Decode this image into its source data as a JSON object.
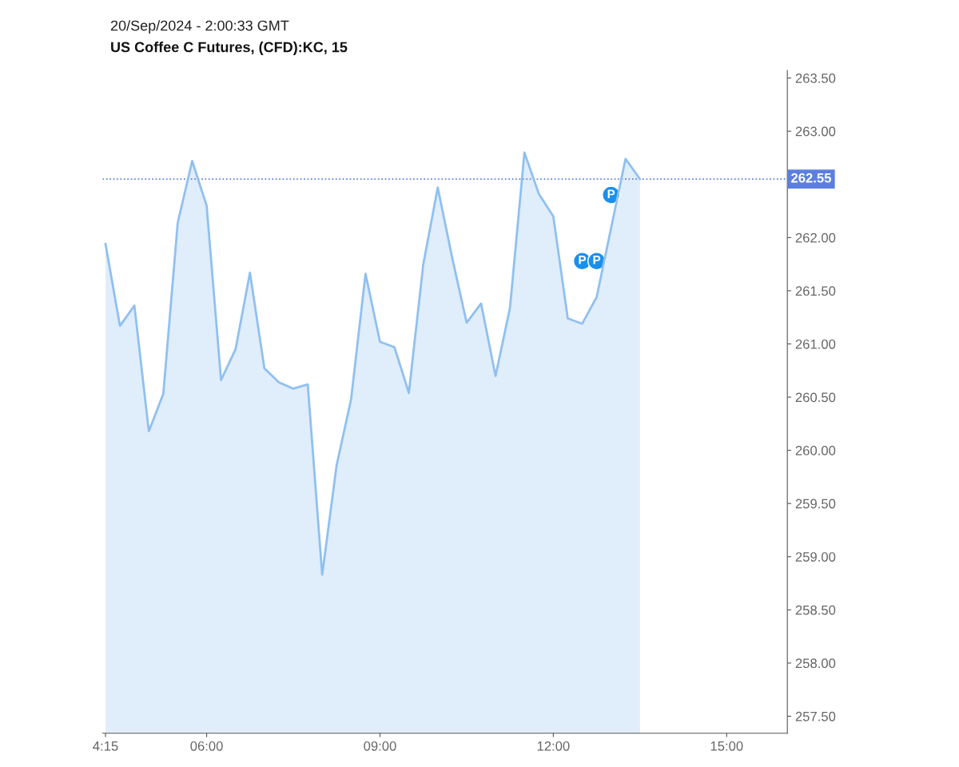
{
  "chart_data": {
    "type": "area",
    "title": "US Coffee C Futures, (CFD):KC, 15",
    "subtitle": "20/Sep/2024 - 2:00:33 GMT",
    "x": [
      4.25,
      4.5,
      4.75,
      5.0,
      5.25,
      5.5,
      5.75,
      6.0,
      6.25,
      6.5,
      6.75,
      7.0,
      7.25,
      7.5,
      7.75,
      8.0,
      8.25,
      8.5,
      8.75,
      9.0,
      9.25,
      9.5,
      9.75,
      10.0,
      10.25,
      10.5,
      10.75,
      11.0,
      11.25,
      11.5,
      11.75,
      12.0,
      12.25,
      12.5,
      12.75,
      13.0,
      13.25,
      13.5
    ],
    "series": [
      {
        "color": "#90c0f0",
        "values": [
          261.94,
          261.17,
          261.36,
          260.18,
          260.53,
          262.14,
          262.72,
          262.3,
          260.66,
          260.95,
          261.67,
          260.77,
          260.64,
          260.58,
          260.62,
          258.83,
          259.86,
          260.48,
          261.66,
          261.02,
          260.97,
          260.54,
          261.75,
          262.47,
          261.81,
          261.2,
          261.38,
          260.7,
          261.34,
          262.8,
          262.41,
          262.2,
          261.24,
          261.19,
          261.44,
          null,
          262.74,
          262.55
        ]
      }
    ],
    "xlim": [
      4.2,
      16.05
    ],
    "xticks": [
      {
        "value": 4.25,
        "label": "4:15"
      },
      {
        "value": 6,
        "label": "06:00"
      },
      {
        "value": 9,
        "label": "09:00"
      },
      {
        "value": 12,
        "label": "12:00"
      },
      {
        "value": 15,
        "label": "15:00"
      }
    ],
    "ylim": [
      257.34,
      263.57
    ],
    "yticks": [
      {
        "value": 257.5,
        "label": "257.50"
      },
      {
        "value": 258,
        "label": "258.00"
      },
      {
        "value": 258.5,
        "label": "258.50"
      },
      {
        "value": 259,
        "label": "259.00"
      },
      {
        "value": 259.5,
        "label": "259.50"
      },
      {
        "value": 260,
        "label": "260.00"
      },
      {
        "value": 260.5,
        "label": "260.50"
      },
      {
        "value": 261,
        "label": "261.00"
      },
      {
        "value": 261.5,
        "label": "261.50"
      },
      {
        "value": 262,
        "label": "262.00"
      },
      {
        "value": 263,
        "label": "263.00"
      },
      {
        "value": 263.5,
        "label": "263.50"
      }
    ],
    "ref_lines": [
      {
        "axis": "y",
        "value": 262.55,
        "label": "262.55",
        "color": "#5b7fe0",
        "line_style": "dotted"
      }
    ],
    "annotations": [
      {
        "text": "P",
        "x": 12.5,
        "y": 261.78
      },
      {
        "text": "P",
        "x": 12.75,
        "y": 261.78
      },
      {
        "text": "P",
        "x": 13.0,
        "y": 262.4
      }
    ],
    "grid": false,
    "legend": false
  }
}
